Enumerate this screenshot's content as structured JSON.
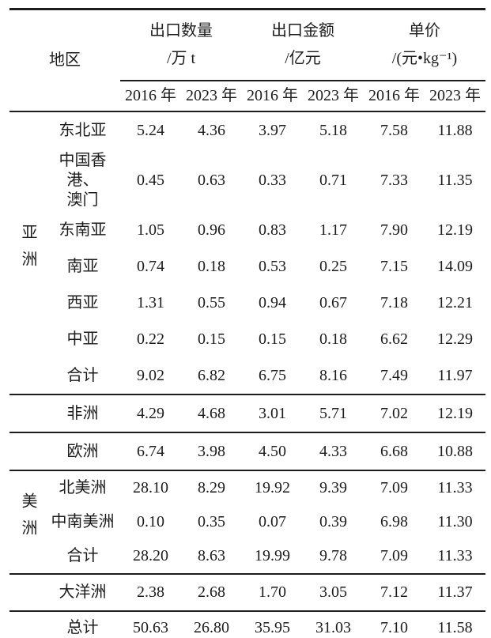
{
  "table": {
    "header": {
      "region_label": "地区",
      "groups": [
        {
          "title": "出口数量",
          "unit": "/万 t"
        },
        {
          "title": "出口金额",
          "unit": "/亿元"
        },
        {
          "title": "单价",
          "unit": "/(元•kg⁻¹)"
        }
      ],
      "year_cols": [
        "2016 年",
        "2023 年",
        "2016 年",
        "2023 年",
        "2016 年",
        "2023 年"
      ]
    },
    "body": {
      "asia": {
        "group_label": "亚洲",
        "rows": [
          {
            "name": "东北亚",
            "v": [
              "5.24",
              "4.36",
              "3.97",
              "5.18",
              "7.58",
              "11.88"
            ]
          },
          {
            "name": "中国香港、\n澳门",
            "v": [
              "0.45",
              "0.63",
              "0.33",
              "0.71",
              "7.33",
              "11.35"
            ]
          },
          {
            "name": "东南亚",
            "v": [
              "1.05",
              "0.96",
              "0.83",
              "1.17",
              "7.90",
              "12.19"
            ]
          },
          {
            "name": "南亚",
            "v": [
              "0.74",
              "0.18",
              "0.53",
              "0.25",
              "7.15",
              "14.09"
            ]
          },
          {
            "name": "西亚",
            "v": [
              "1.31",
              "0.55",
              "0.94",
              "0.67",
              "7.18",
              "12.21"
            ]
          },
          {
            "name": "中亚",
            "v": [
              "0.22",
              "0.15",
              "0.15",
              "0.18",
              "6.62",
              "12.29"
            ]
          },
          {
            "name": "合计",
            "v": [
              "9.02",
              "6.82",
              "6.75",
              "8.16",
              "7.49",
              "11.97"
            ]
          }
        ]
      },
      "africa": {
        "name": "非洲",
        "v": [
          "4.29",
          "4.68",
          "3.01",
          "5.71",
          "7.02",
          "12.19"
        ]
      },
      "europe": {
        "name": "欧洲",
        "v": [
          "6.74",
          "3.98",
          "4.50",
          "4.33",
          "6.68",
          "10.88"
        ]
      },
      "americas": {
        "group_label": "美洲",
        "rows": [
          {
            "name": "北美洲",
            "v": [
              "28.10",
              "8.29",
              "19.92",
              "9.39",
              "7.09",
              "11.33"
            ]
          },
          {
            "name": "中南美洲",
            "v": [
              "0.10",
              "0.35",
              "0.07",
              "0.39",
              "6.98",
              "11.30"
            ]
          },
          {
            "name": "合计",
            "v": [
              "28.20",
              "8.63",
              "19.99",
              "9.78",
              "7.09",
              "11.33"
            ]
          }
        ]
      },
      "oceania": {
        "name": "大洋洲",
        "v": [
          "2.38",
          "2.68",
          "1.70",
          "3.05",
          "7.12",
          "11.37"
        ]
      },
      "total": {
        "name": "总计",
        "v": [
          "50.63",
          "26.80",
          "35.95",
          "31.03",
          "7.10",
          "11.58"
        ]
      }
    },
    "colors": {
      "text": "#1c1c1c",
      "rule": "#1c1c1c",
      "background": "#ffffff"
    }
  }
}
